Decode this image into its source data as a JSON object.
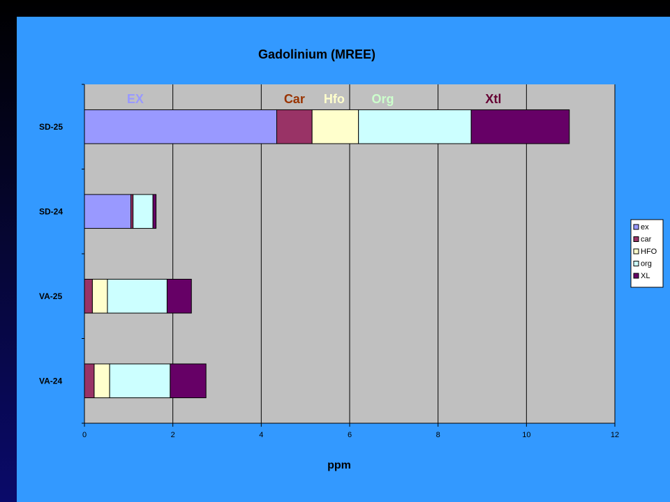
{
  "chart_data": {
    "type": "bar",
    "orientation": "horizontal",
    "stacked": true,
    "title": "Gadolinium  (MREE)",
    "xlabel": "ppm",
    "ylabel": "",
    "xlim": [
      0,
      12
    ],
    "x_ticks": [
      0,
      2,
      4,
      6,
      8,
      10,
      12
    ],
    "grid": "vertical",
    "categories": [
      "SD-25",
      "SD-24",
      "VA-25",
      "VA-24"
    ],
    "series": [
      {
        "name": "ex",
        "color": "#9999ff",
        "values": [
          4.35,
          1.05,
          0.0,
          0.0
        ]
      },
      {
        "name": "car",
        "color": "#993366",
        "values": [
          0.8,
          0.05,
          0.18,
          0.22
        ]
      },
      {
        "name": "HFO",
        "color": "#ffffcc",
        "values": [
          1.05,
          0.0,
          0.34,
          0.35
        ]
      },
      {
        "name": "org",
        "color": "#ccffff",
        "values": [
          2.55,
          0.45,
          1.35,
          1.37
        ]
      },
      {
        "name": "XL",
        "color": "#660066",
        "values": [
          2.22,
          0.07,
          0.55,
          0.81
        ]
      }
    ],
    "legend_position": "right",
    "annotations": [
      {
        "text": "EX",
        "color": "#9999ff"
      },
      {
        "text": "Car",
        "color": "#993300"
      },
      {
        "text": "Hfo",
        "color": "#ffffcc"
      },
      {
        "text": "Org",
        "color": "#ccffcc"
      },
      {
        "text": "Xtl",
        "color": "#660033"
      }
    ],
    "plot_background": "#c0c0c0"
  }
}
